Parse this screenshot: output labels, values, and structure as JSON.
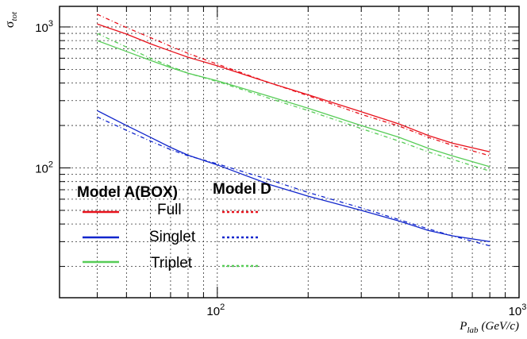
{
  "chart_data": {
    "type": "line",
    "x_scale": "log",
    "y_scale": "log",
    "xlim": [
      30,
      1000
    ],
    "ylim": [
      12,
      1400
    ],
    "grid": true,
    "x_ticks": [
      {
        "value": 100,
        "label": "10",
        "exp": "2"
      },
      {
        "value": 1000,
        "label": "10",
        "exp": "3"
      }
    ],
    "y_ticks": [
      {
        "value": 100,
        "label": "10",
        "exp": "2"
      },
      {
        "value": 1000,
        "label": "10",
        "exp": "3"
      }
    ],
    "xlabel": {
      "main": "P",
      "sub": "lab",
      "unit": "(GeV/c)"
    },
    "ylabel": {
      "main": "σ",
      "sub": "tot"
    },
    "legend": {
      "position": "lower-left",
      "header_solid": "Model A(BOX)",
      "header_dashed": "Model D",
      "entries": [
        "Full",
        "Singlet",
        "Triplet"
      ]
    },
    "colors": {
      "full": "#e8111b",
      "singlet": "#1126cc",
      "triplet": "#57cc57"
    },
    "series": [
      {
        "name": "Full",
        "model": "Model A(BOX)",
        "style": "solid",
        "color": "#e8111b",
        "x": [
          40,
          50,
          60,
          70,
          80,
          100,
          150,
          200,
          300,
          400,
          500,
          600,
          800
        ],
        "y": [
          1050,
          890,
          760,
          675,
          610,
          530,
          400,
          330,
          250,
          205,
          170,
          150,
          130
        ]
      },
      {
        "name": "Full",
        "model": "Model D",
        "style": "dashed",
        "color": "#e8111b",
        "x": [
          40,
          50,
          60,
          70,
          80,
          100,
          150,
          200,
          300,
          400,
          500,
          600,
          800
        ],
        "y": [
          1230,
          990,
          840,
          730,
          650,
          545,
          400,
          325,
          240,
          198,
          165,
          145,
          122
        ]
      },
      {
        "name": "Singlet",
        "model": "Model A(BOX)",
        "style": "solid",
        "color": "#1126cc",
        "x": [
          40,
          50,
          60,
          70,
          80,
          100,
          150,
          200,
          300,
          400,
          500,
          600,
          800
        ],
        "y": [
          255,
          200,
          165,
          140,
          123,
          105,
          76,
          63,
          50,
          42,
          36,
          33,
          30
        ]
      },
      {
        "name": "Singlet",
        "model": "Model D",
        "style": "dashed",
        "color": "#1126cc",
        "x": [
          40,
          50,
          60,
          70,
          80,
          100,
          150,
          200,
          300,
          400,
          500,
          600,
          800
        ],
        "y": [
          230,
          185,
          155,
          135,
          122,
          107,
          82,
          67,
          52,
          43,
          37,
          33,
          28
        ]
      },
      {
        "name": "Triplet",
        "model": "Model A(BOX)",
        "style": "solid",
        "color": "#57cc57",
        "x": [
          40,
          50,
          60,
          70,
          80,
          100,
          150,
          200,
          300,
          400,
          500,
          600,
          800
        ],
        "y": [
          800,
          670,
          580,
          515,
          470,
          415,
          320,
          265,
          200,
          165,
          138,
          122,
          102
        ]
      },
      {
        "name": "Triplet",
        "model": "Model D",
        "style": "dashed",
        "color": "#57cc57",
        "x": [
          40,
          50,
          60,
          70,
          80,
          100,
          150,
          200,
          300,
          400,
          500,
          600,
          800
        ],
        "y": [
          900,
          720,
          600,
          525,
          470,
          410,
          310,
          255,
          190,
          155,
          130,
          115,
          95
        ]
      }
    ]
  }
}
